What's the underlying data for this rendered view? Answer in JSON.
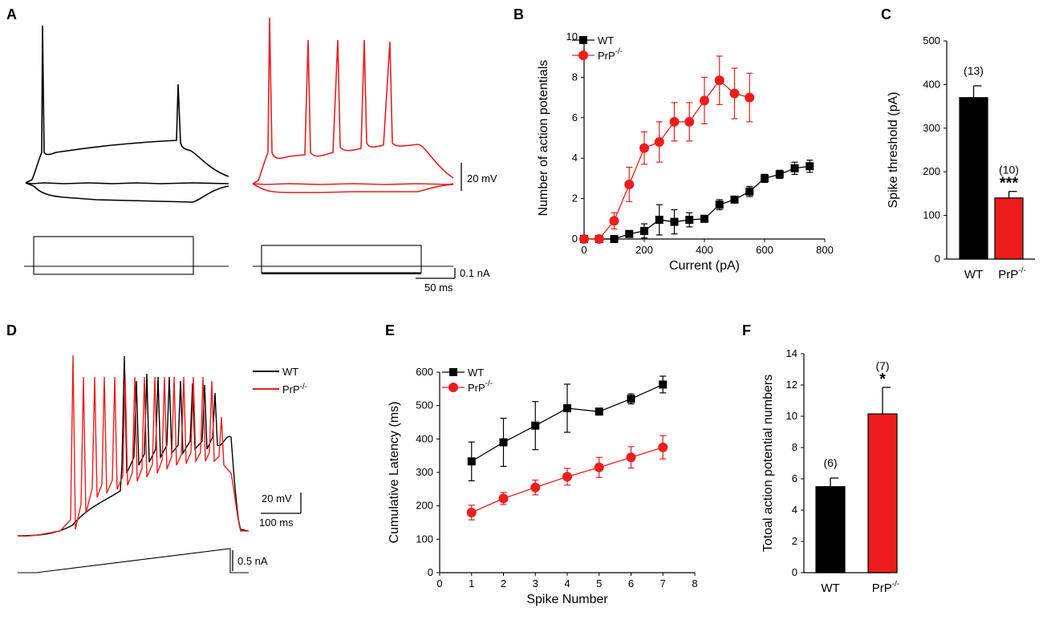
{
  "colors": {
    "wt": "#000000",
    "ko": "#ee1c1c",
    "axis": "#000000"
  },
  "panels": {
    "A": {
      "letter": "A"
    },
    "B": {
      "letter": "B"
    },
    "C": {
      "letter": "C"
    },
    "D": {
      "letter": "D"
    },
    "E": {
      "letter": "E"
    },
    "F": {
      "letter": "F"
    }
  },
  "scale_bars": {
    "a_voltage": "20 mV",
    "a_current": "0.1 nA",
    "a_time": "50 ms",
    "d_voltage": "20 mV",
    "d_time": "100 ms",
    "d_current": "0.5 nA"
  },
  "legend_d": {
    "wt": "WT",
    "ko_base": "PrP",
    "ko_sup": "-/-"
  },
  "chart_data": [
    {
      "panel": "B",
      "type": "line",
      "xlabel": "Current (pA)",
      "ylabel": "Number of action potentials",
      "xlim": [
        0,
        800
      ],
      "ylim": [
        0,
        10
      ],
      "xticks": [
        0,
        200,
        400,
        600,
        800
      ],
      "yticks": [
        0,
        2,
        4,
        6,
        8,
        10
      ],
      "legend": {
        "position": "top-left",
        "entries": [
          {
            "base": "WT",
            "sup": ""
          },
          {
            "base": "PrP",
            "sup": "-/-"
          }
        ]
      },
      "series": [
        {
          "name": "WT",
          "marker": "square",
          "x": [
            0,
            50,
            100,
            150,
            200,
            250,
            300,
            350,
            400,
            450,
            500,
            550,
            600,
            650,
            700,
            750
          ],
          "y": [
            0,
            0,
            0,
            0.25,
            0.4,
            0.95,
            0.85,
            0.95,
            1.0,
            1.7,
            1.95,
            2.35,
            3.0,
            3.2,
            3.5,
            3.6
          ],
          "err": [
            0,
            0,
            0,
            0.15,
            0.35,
            0.75,
            0.6,
            0.35,
            0.15,
            0.25,
            0.15,
            0.25,
            0.2,
            0.2,
            0.3,
            0.3
          ]
        },
        {
          "name": "PrP-/-",
          "marker": "circle",
          "x": [
            0,
            50,
            100,
            150,
            200,
            250,
            300,
            350,
            400,
            450,
            500,
            550
          ],
          "y": [
            0,
            0,
            0.9,
            2.7,
            4.5,
            4.8,
            5.8,
            5.8,
            6.85,
            7.85,
            7.2,
            7.0
          ],
          "err": [
            0,
            0,
            0.4,
            0.85,
            0.8,
            1.0,
            0.95,
            0.95,
            1.15,
            1.2,
            1.25,
            1.2
          ]
        }
      ]
    },
    {
      "panel": "C",
      "type": "bar",
      "ylabel": "Spike threshold (pA)",
      "ylim": [
        0,
        500
      ],
      "yticks": [
        0,
        100,
        200,
        300,
        400,
        500
      ],
      "categories": [
        {
          "base": "WT",
          "sup": ""
        },
        {
          "base": "PrP",
          "sup": "-/-"
        }
      ],
      "values": [
        370,
        140
      ],
      "err": [
        27,
        15
      ],
      "n_labels": [
        "(13)",
        "(10)"
      ],
      "sig_labels": [
        "",
        "***"
      ]
    },
    {
      "panel": "E",
      "type": "line",
      "xlabel": "Spike Number",
      "ylabel": "Cumulative Latency (ms)",
      "xlim": [
        0,
        8
      ],
      "ylim": [
        0,
        600
      ],
      "xticks": [
        0,
        1,
        2,
        3,
        4,
        5,
        6,
        7,
        8
      ],
      "yticks": [
        0,
        100,
        200,
        300,
        400,
        500,
        600
      ],
      "legend": {
        "position": "top-left",
        "entries": [
          {
            "base": "WT",
            "sup": ""
          },
          {
            "base": "PrP",
            "sup": "-/-"
          }
        ]
      },
      "series": [
        {
          "name": "WT",
          "marker": "square",
          "x": [
            1,
            2,
            3,
            4,
            5,
            6,
            7
          ],
          "y": [
            333,
            390,
            440,
            492,
            482,
            520,
            563
          ],
          "err": [
            58,
            72,
            72,
            72,
            10,
            15,
            25
          ]
        },
        {
          "name": "PrP-/-",
          "marker": "circle",
          "x": [
            1,
            2,
            3,
            4,
            5,
            6,
            7
          ],
          "y": [
            180,
            222,
            255,
            287,
            315,
            345,
            375
          ],
          "err": [
            22,
            18,
            22,
            25,
            30,
            32,
            35
          ]
        }
      ]
    },
    {
      "panel": "F",
      "type": "bar",
      "ylabel": "Totoal action potential numbers",
      "ylim": [
        0,
        14
      ],
      "yticks": [
        0,
        2,
        4,
        6,
        8,
        10,
        12,
        14
      ],
      "categories": [
        {
          "base": "WT",
          "sup": ""
        },
        {
          "base": "PrP",
          "sup": "-/-"
        }
      ],
      "values": [
        5.5,
        10.15
      ],
      "err": [
        0.55,
        1.7
      ],
      "n_labels": [
        "(6)",
        "(7)"
      ],
      "sig_labels": [
        "",
        "*"
      ]
    }
  ]
}
